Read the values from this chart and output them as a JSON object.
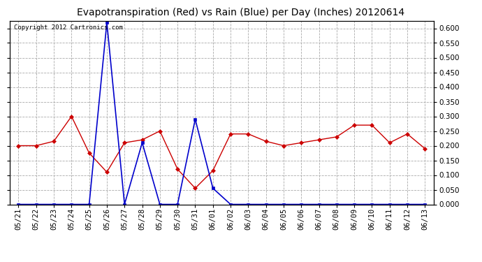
{
  "title": "Evapotranspiration (Red) vs Rain (Blue) per Day (Inches) 20120614",
  "copyright": "Copyright 2012 Cartronics.com",
  "x_labels": [
    "05/21",
    "05/22",
    "05/23",
    "05/24",
    "05/25",
    "05/26",
    "05/27",
    "05/28",
    "05/29",
    "05/30",
    "05/31",
    "06/01",
    "06/02",
    "06/03",
    "06/04",
    "06/05",
    "06/06",
    "06/07",
    "06/08",
    "06/09",
    "06/10",
    "06/11",
    "06/12",
    "06/13"
  ],
  "et_red": [
    0.2,
    0.2,
    0.215,
    0.3,
    0.175,
    0.11,
    0.21,
    0.22,
    0.25,
    0.12,
    0.055,
    0.115,
    0.24,
    0.24,
    0.215,
    0.2,
    0.21,
    0.22,
    0.23,
    0.27,
    0.27,
    0.21,
    0.24,
    0.19
  ],
  "rain_blue": [
    0.0,
    0.0,
    0.0,
    0.0,
    0.0,
    0.62,
    0.0,
    0.21,
    0.0,
    0.0,
    0.29,
    0.055,
    0.0,
    0.0,
    0.0,
    0.0,
    0.0,
    0.0,
    0.0,
    0.0,
    0.0,
    0.0,
    0.0,
    0.0
  ],
  "et_color": "#cc0000",
  "rain_color": "#0000cc",
  "background_color": "#ffffff",
  "grid_color": "#aaaaaa",
  "ylim": [
    0.0,
    0.625
  ],
  "yticks": [
    0.0,
    0.05,
    0.1,
    0.15,
    0.2,
    0.25,
    0.3,
    0.35,
    0.4,
    0.45,
    0.5,
    0.55,
    0.6
  ],
  "title_fontsize": 10,
  "copyright_fontsize": 6.5,
  "tick_fontsize": 7.5
}
